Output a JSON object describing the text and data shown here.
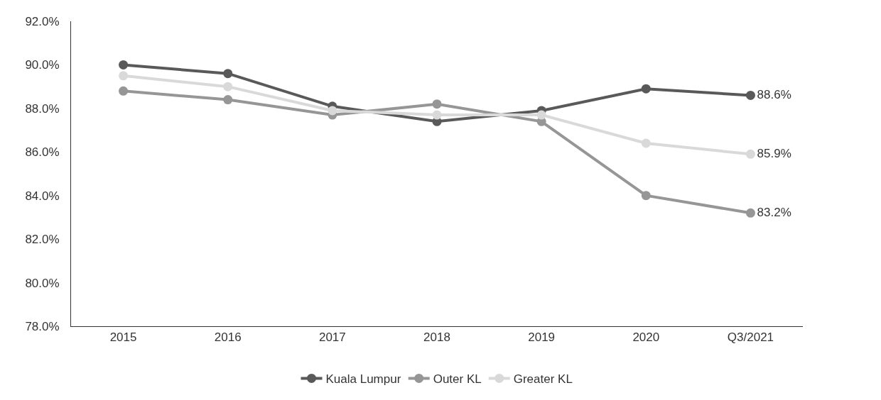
{
  "chart_data": {
    "type": "line",
    "categories": [
      "2015",
      "2016",
      "2017",
      "2018",
      "2019",
      "2020",
      "Q3/2021"
    ],
    "series": [
      {
        "name": "Kuala Lumpur",
        "color": "#595959",
        "values": [
          90.0,
          89.6,
          88.1,
          87.4,
          87.9,
          88.9,
          88.6
        ],
        "value_labels": [
          null,
          null,
          null,
          null,
          null,
          null,
          "88.6%"
        ]
      },
      {
        "name": "Outer KL",
        "color": "#969696",
        "values": [
          88.8,
          88.4,
          87.7,
          88.2,
          87.4,
          84.0,
          83.2
        ],
        "value_labels": [
          null,
          null,
          null,
          null,
          null,
          null,
          "83.2%"
        ]
      },
      {
        "name": "Greater KL",
        "color": "#d9d9d9",
        "values": [
          89.5,
          89.0,
          87.9,
          87.7,
          87.7,
          86.4,
          85.9
        ],
        "value_labels": [
          null,
          null,
          null,
          null,
          null,
          null,
          "85.9%"
        ]
      }
    ],
    "ylim": [
      78,
      92
    ],
    "yticks": [
      {
        "value": 78,
        "label": "78.0%"
      },
      {
        "value": 80,
        "label": "80.0%"
      },
      {
        "value": 82,
        "label": "82.0%"
      },
      {
        "value": 84,
        "label": "84.0%"
      },
      {
        "value": 86,
        "label": "86.0%"
      },
      {
        "value": 88,
        "label": "88.0%"
      },
      {
        "value": 90,
        "label": "90.0%"
      },
      {
        "value": 92,
        "label": "92.0%"
      }
    ],
    "legend": "bottom",
    "marker": "circle",
    "line_style": "solid"
  }
}
